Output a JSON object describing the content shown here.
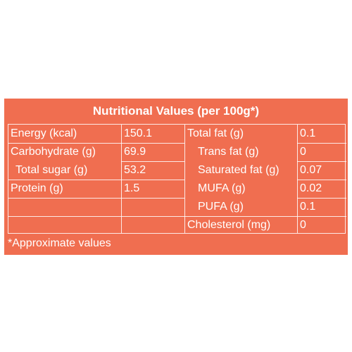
{
  "title": "Nutritional Values (per 100g*)",
  "left_rows": [
    {
      "label": "Energy (kcal)",
      "value": "150.1"
    },
    {
      "label": "Carbohydrate (g)",
      "value": "69.9"
    },
    {
      "label": "Total sugar (g)",
      "value": "53.2"
    },
    {
      "label": "Protein (g)",
      "value": "1.5"
    },
    {
      "label": "",
      "value": ""
    },
    {
      "label": "",
      "value": ""
    }
  ],
  "right_rows": [
    {
      "label": "Total fat (g)",
      "value": "0.1"
    },
    {
      "label": "Trans fat (g)",
      "value": "0"
    },
    {
      "label": "Saturated fat (g)",
      "value": "0.07"
    },
    {
      "label": "MUFA (g)",
      "value": "0.02"
    },
    {
      "label": "PUFA (g)",
      "value": "0.1"
    },
    {
      "label": "Cholesterol (mg)",
      "value": "0"
    }
  ],
  "footnote": "*Approximate values",
  "colors": {
    "background": "#f06e50",
    "text": "#ffffff"
  }
}
